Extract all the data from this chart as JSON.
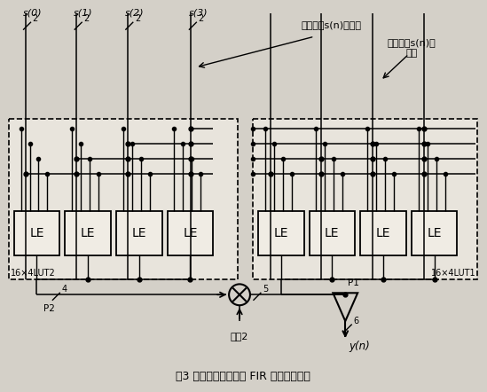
{
  "title": "图3 基于查找表结构的 FIR 滤波器结构图",
  "bg_color": "#d4d0c8",
  "box_fill": "#e8e4dc",
  "le_fill": "#f0ece4",
  "signal_high_label": "输入信号s(n)的高位",
  "signal_low_label": "输入信号s(n)的\n低位",
  "multiply_label": "乘以2",
  "lut2_label": "16×4LUT2",
  "lut1_label": "16×4LUT1",
  "le_label": "LE",
  "signal_labels": [
    "s(0)",
    "s(1)",
    "s(2)",
    "s(3)"
  ],
  "p1_label": "P1",
  "p2_label": "P2",
  "yn_label": "y(n)",
  "n2": "2",
  "n4": "4",
  "n5": "5",
  "n6": "6"
}
